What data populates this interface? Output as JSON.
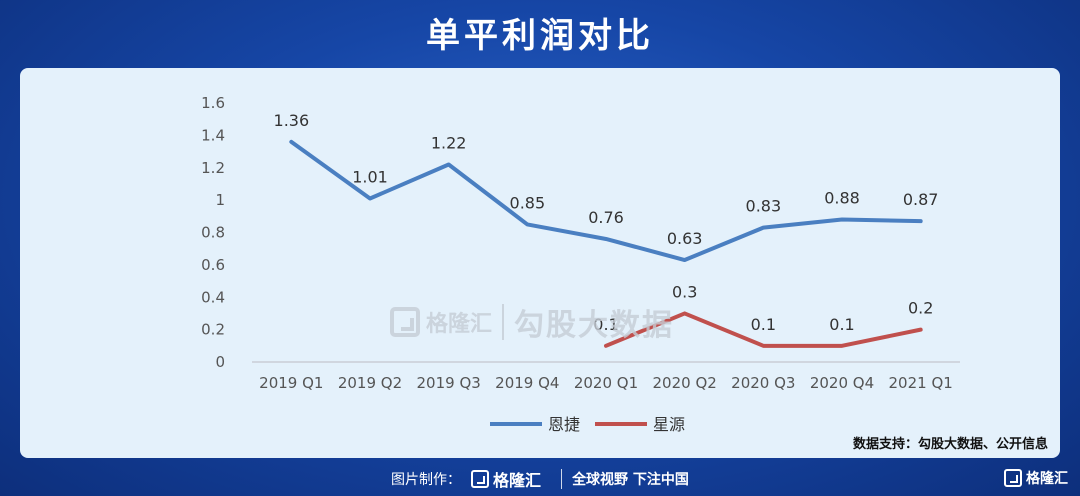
{
  "title": "单平利润对比",
  "source": "数据支持：勾股大数据、公开信息",
  "watermark": {
    "brand": "格隆汇",
    "product": "勾股大数据"
  },
  "footer": {
    "credit": "图片制作：",
    "brand": "格隆汇",
    "slogan": "全球视野 下注中国",
    "corner_brand": "格隆汇"
  },
  "colors": {
    "enjie": "#4a7fc1",
    "xingyuan": "#c0504d"
  },
  "chart_data": {
    "type": "line",
    "categories": [
      "2019 Q1",
      "2019 Q2",
      "2019 Q3",
      "2019 Q4",
      "2020 Q1",
      "2020 Q2",
      "2020 Q3",
      "2020 Q4",
      "2021 Q1"
    ],
    "yticks": [
      "0",
      "0.2",
      "0.4",
      "0.6",
      "0.8",
      "1",
      "1.2",
      "1.4",
      "1.6"
    ],
    "ylim": [
      0,
      1.6
    ],
    "series": [
      {
        "name": "恩捷",
        "values": [
          1.36,
          1.01,
          1.22,
          0.85,
          0.76,
          0.63,
          0.83,
          0.88,
          0.87
        ],
        "labels": [
          "1.36",
          "1.01",
          "1.22",
          "0.85",
          "0.76",
          "0.63",
          "0.83",
          "0.88",
          "0.87"
        ]
      },
      {
        "name": "星源",
        "values": [
          null,
          null,
          null,
          null,
          0.1,
          0.3,
          0.1,
          0.1,
          0.2
        ],
        "labels": [
          "",
          "",
          "",
          "",
          "0.1",
          "0.3",
          "0.1",
          "0.1",
          "0.2"
        ]
      }
    ],
    "legend": "bottom-center",
    "grid": false
  }
}
